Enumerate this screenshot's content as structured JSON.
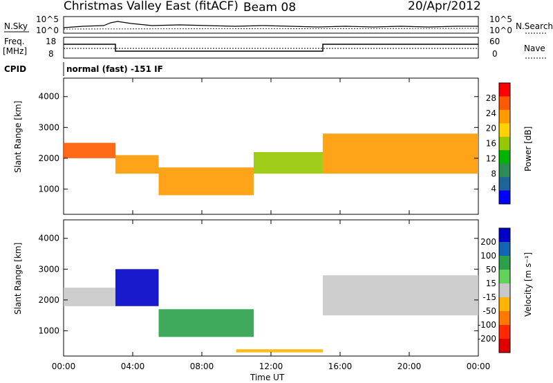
{
  "header": {
    "title_left": "Christmas Valley East (fitACF)",
    "beam_label": "Beam 08",
    "date": "20/Apr/2012",
    "cpid_label": "CPID",
    "cpid_value": "normal (fast) -151 IF"
  },
  "sky_panel": {
    "left_label": "N.Sky",
    "right_label": "N.Search",
    "left_ticks": [
      "10^5",
      "10^0"
    ],
    "right_ticks": [
      "10^5",
      "10^0"
    ]
  },
  "freq_panel": {
    "left_label_line1": "Freq.",
    "left_label_line2": "[MHz]",
    "right_label": "Nave",
    "left_ticks": [
      "18",
      "8"
    ],
    "right_ticks": [
      "60",
      "0"
    ]
  },
  "colorbars": {
    "power": {
      "label": "Power [dB]",
      "ticks": [
        "28",
        "24",
        "20",
        "16",
        "12",
        "8",
        "4"
      ],
      "colors": [
        "#ff0000",
        "#ff5a00",
        "#ff9a00",
        "#ffd200",
        "#96c800",
        "#00b400",
        "#2e8b57",
        "#1e6496",
        "#0000ff"
      ]
    },
    "velocity": {
      "label": "Velocity [m s⁻¹]",
      "ticks": [
        "200",
        "100",
        "50",
        "15",
        "-15",
        "-50",
        "-100",
        "-200"
      ],
      "colors": [
        "#0000c8",
        "#1464b4",
        "#2aa04a",
        "#64d25a",
        "#c8c8c8",
        "#ffb400",
        "#ff7800",
        "#ff2800",
        "#e10000"
      ]
    }
  },
  "chart_data": [
    {
      "type": "heatmap",
      "title": "",
      "xlabel": "",
      "ylabel": "Slant Range [km]",
      "xlim": [
        0,
        24
      ],
      "ylim": [
        180,
        4600
      ],
      "x_ticks": [
        "00:00",
        "04:00",
        "08:00",
        "12:00",
        "16:00",
        "20:00",
        "00:00"
      ],
      "y_ticks": [
        1000,
        2000,
        3000,
        4000
      ],
      "colorbar": "Power [dB]",
      "features": [
        {
          "name": "band-a",
          "range_km_start": 2000,
          "range_km_end": 2500,
          "t_start": 0,
          "t_end": 3,
          "power_db": 24
        },
        {
          "name": "band-b",
          "range_km_start": 1500,
          "range_km_end": 2100,
          "t_start": 3,
          "t_end": 5.5,
          "power_db": 22
        },
        {
          "name": "band-c",
          "range_km_start": 800,
          "range_km_end": 1700,
          "t_start": 5.5,
          "t_end": 11,
          "power_db": 20
        },
        {
          "name": "band-d",
          "range_km_start": 1500,
          "range_km_end": 2200,
          "t_start": 11,
          "t_end": 15,
          "power_db": 14
        },
        {
          "name": "band-e",
          "range_km_start": 1500,
          "range_km_end": 2800,
          "t_start": 15,
          "t_end": 24,
          "power_db": 20
        }
      ]
    },
    {
      "type": "heatmap",
      "title": "",
      "xlabel": "Time UT",
      "ylabel": "Slant Range [km]",
      "xlim": [
        0,
        24
      ],
      "ylim": [
        180,
        4600
      ],
      "x_ticks": [
        "00:00",
        "04:00",
        "08:00",
        "12:00",
        "16:00",
        "20:00",
        "00:00"
      ],
      "y_ticks": [
        1000,
        2000,
        3000,
        4000
      ],
      "colorbar": "Velocity [m s⁻¹]",
      "features": [
        {
          "name": "v-band-a",
          "range_km_start": 1800,
          "range_km_end": 2400,
          "t_start": 0,
          "t_end": 3,
          "velocity": 0
        },
        {
          "name": "v-band-b",
          "range_km_start": 1800,
          "range_km_end": 3000,
          "t_start": 3,
          "t_end": 5.5,
          "velocity": 150
        },
        {
          "name": "v-band-c",
          "range_km_start": 800,
          "range_km_end": 1700,
          "t_start": 5.5,
          "t_end": 11,
          "velocity": 60
        },
        {
          "name": "v-band-d",
          "range_km_start": 300,
          "range_km_end": 400,
          "t_start": 10,
          "t_end": 15,
          "velocity": -50
        },
        {
          "name": "v-band-e",
          "range_km_start": 1500,
          "range_km_end": 2800,
          "t_start": 15,
          "t_end": 24,
          "velocity": 0
        }
      ]
    }
  ]
}
